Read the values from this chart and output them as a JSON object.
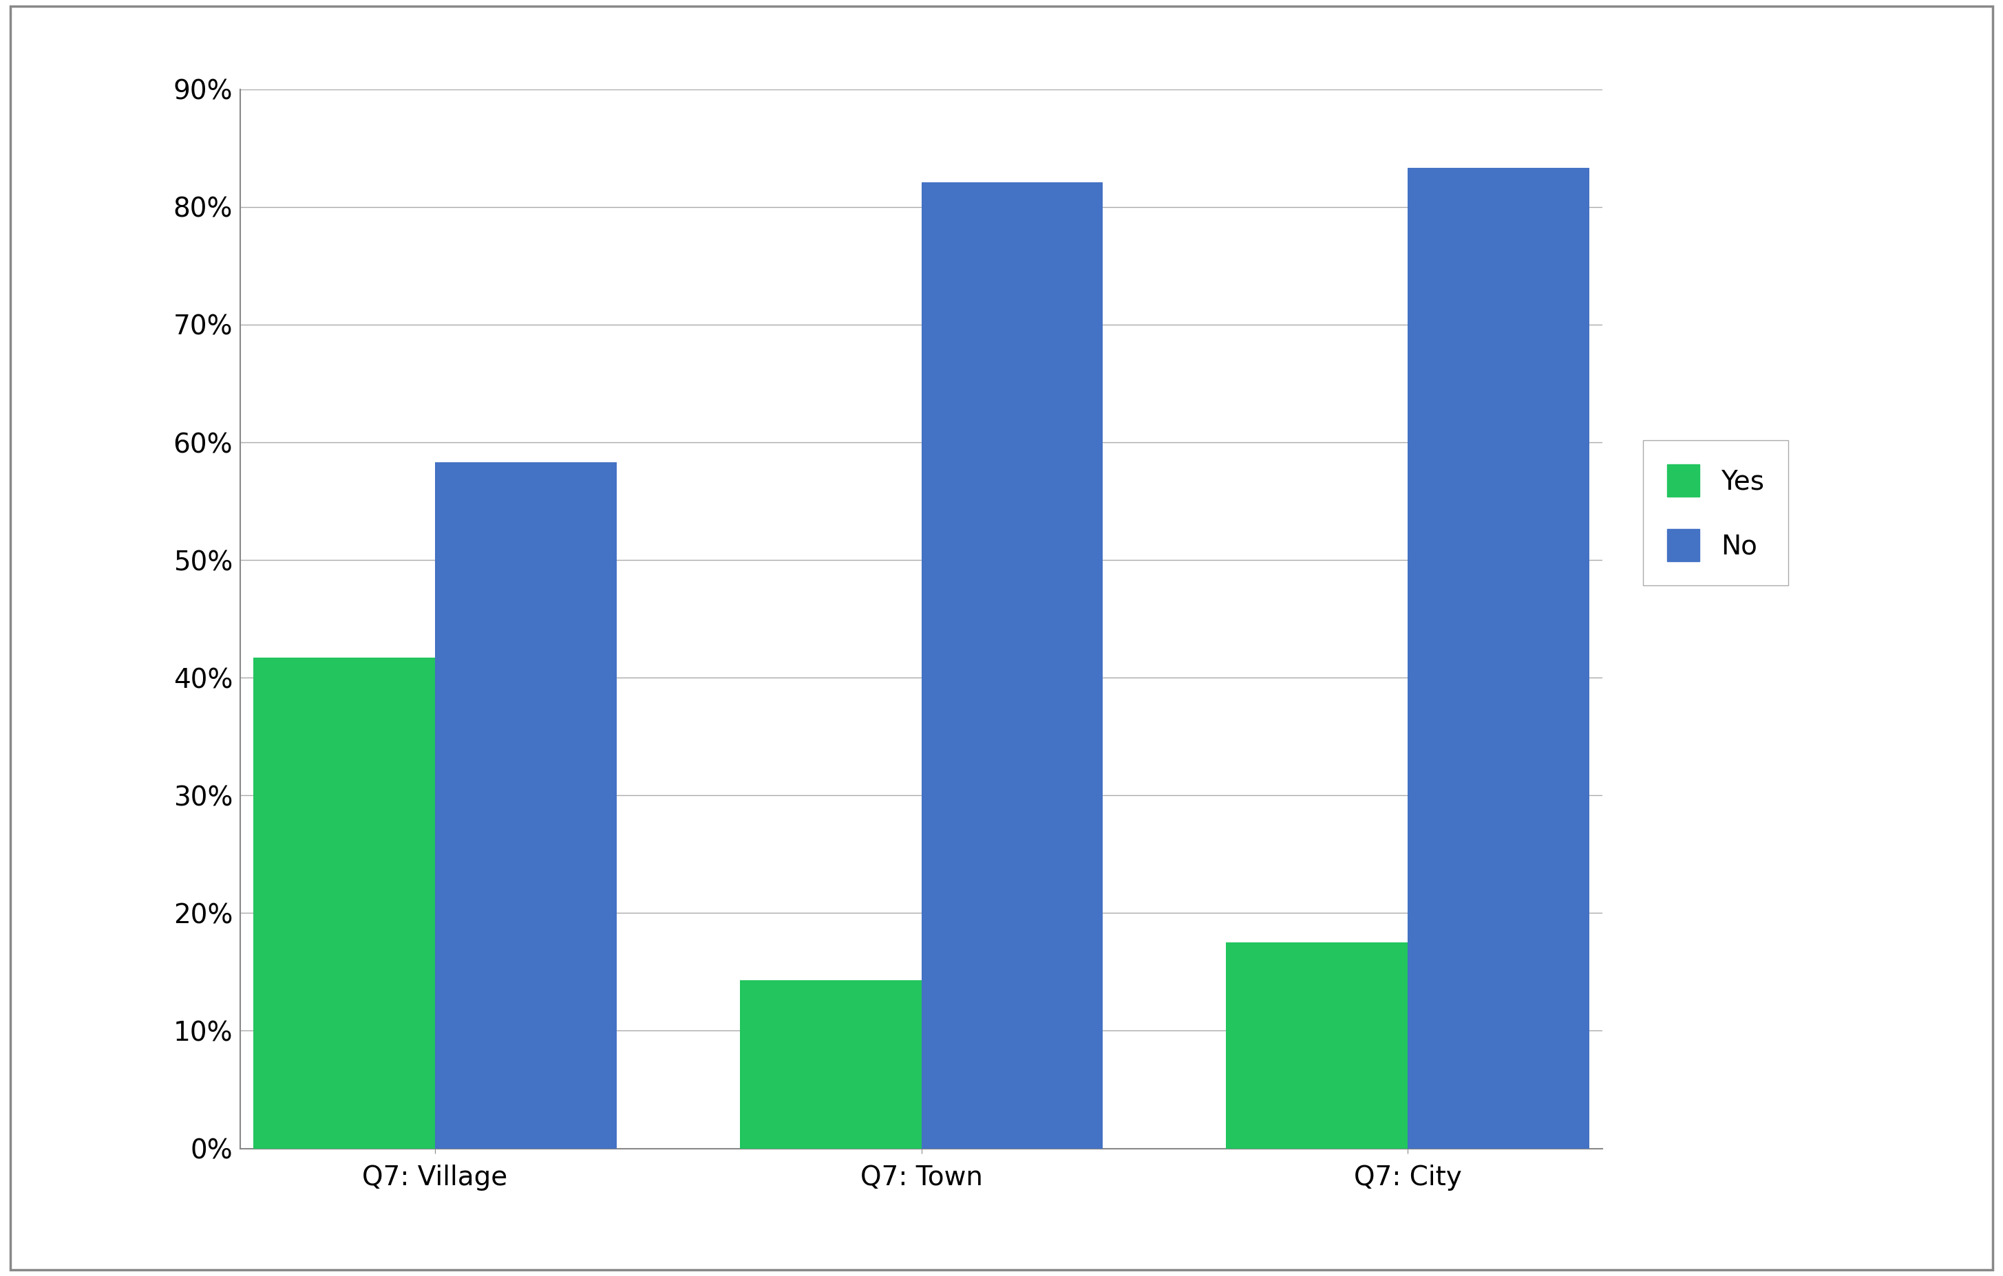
{
  "categories": [
    "Q7: Village",
    "Q7: Town",
    "Q7: City"
  ],
  "yes_values": [
    0.417,
    0.143,
    0.175
  ],
  "no_values": [
    0.583,
    0.821,
    0.833
  ],
  "yes_color": "#22C55E",
  "no_color": "#4472C4",
  "ylim": [
    0,
    0.9
  ],
  "yticks": [
    0.0,
    0.1,
    0.2,
    0.3,
    0.4,
    0.5,
    0.6,
    0.7,
    0.8,
    0.9
  ],
  "ytick_labels": [
    "0%",
    "10%",
    "20%",
    "30%",
    "40%",
    "50%",
    "60%",
    "70%",
    "80%",
    "90%"
  ],
  "bar_width": 0.28,
  "legend_labels": [
    "Yes",
    "No"
  ],
  "background_color": "#ffffff",
  "grid_color": "#aaaaaa",
  "tick_fontsize": 28,
  "xlabel_fontsize": 28,
  "legend_fontsize": 28,
  "border_color": "#888888",
  "left_spine_color": "#888888",
  "bottom_spine_color": "#888888"
}
